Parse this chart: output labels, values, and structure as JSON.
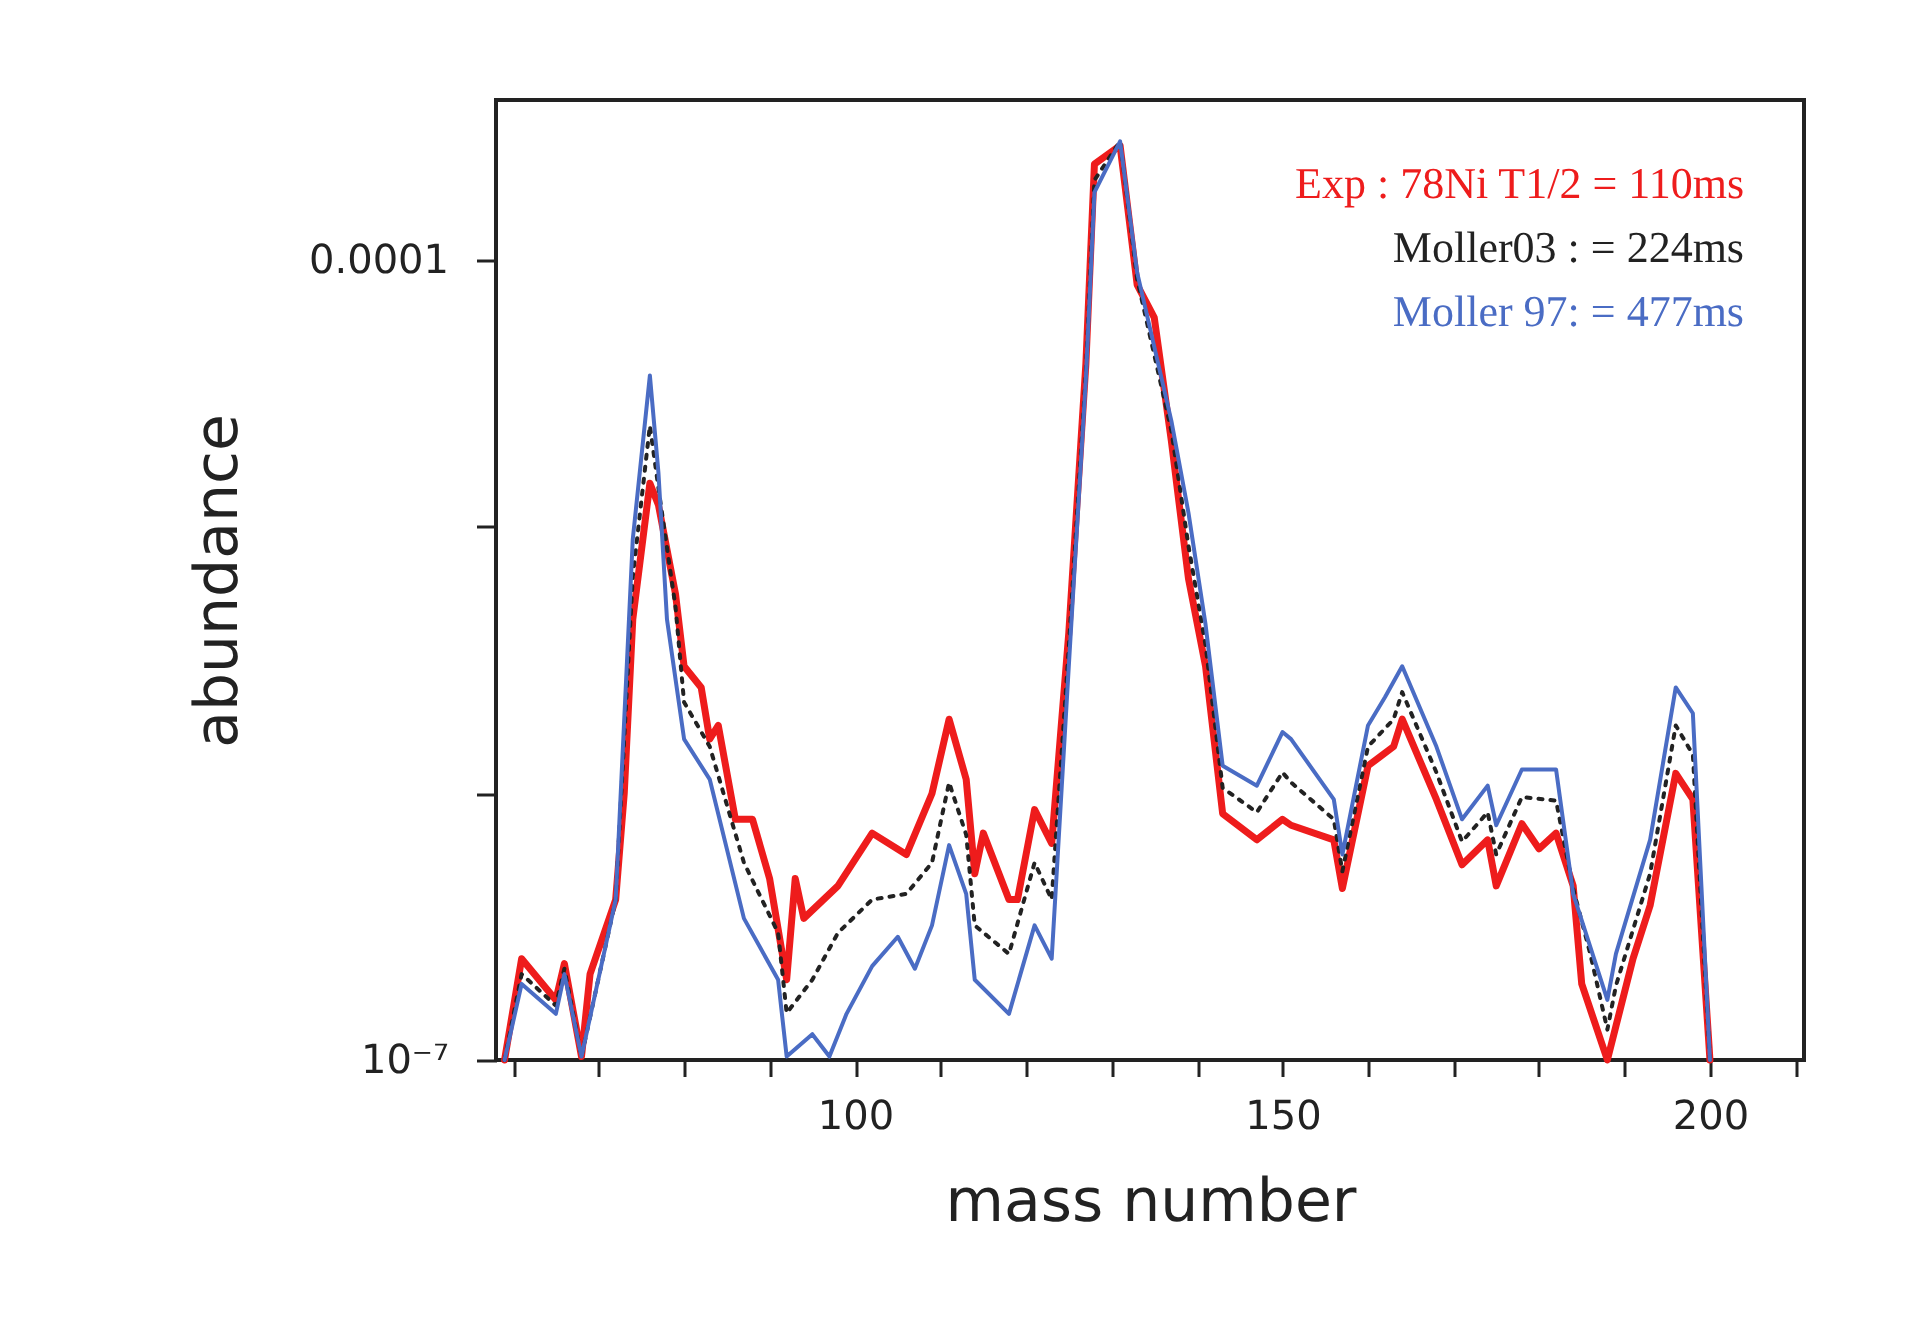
{
  "chart_data": {
    "type": "line",
    "xlabel": "mass number",
    "ylabel": "abundance",
    "log": "y",
    "grid": false,
    "legend": "top right",
    "xlim": [
      58,
      211
    ],
    "ylim": [
      1e-07,
      0.0004
    ],
    "xticks": [
      {
        "value": 60,
        "label": null
      },
      {
        "value": 70,
        "label": null
      },
      {
        "value": 80,
        "label": null
      },
      {
        "value": 90,
        "label": null
      },
      100,
      {
        "value": 110,
        "label": null
      },
      {
        "value": 120,
        "label": null
      },
      {
        "value": 130,
        "label": null
      },
      {
        "value": 140,
        "label": null
      },
      150,
      {
        "value": 160,
        "label": null
      },
      {
        "value": 170,
        "label": null
      },
      {
        "value": 180,
        "label": null
      },
      {
        "value": 190,
        "label": null
      },
      200,
      {
        "value": 210,
        "label": null
      }
    ],
    "yticks": [
      {
        "value": 1e-07,
        "label": "10⁻⁷"
      },
      {
        "value": 1e-06,
        "label": null
      },
      {
        "value": 1e-05,
        "label": null
      },
      {
        "value": 0.0001,
        "label": "0.0001"
      }
    ],
    "series": [
      {
        "name": "Exp : 78Ni T1/2 = 110ms",
        "color": "#ee1c1c",
        "line_style": "solid",
        "x": [
          59,
          61,
          65,
          66,
          68,
          69,
          72,
          73,
          74,
          76,
          77,
          79,
          80,
          82,
          83,
          84,
          86,
          88,
          90,
          92,
          93,
          94,
          98,
          102,
          106,
          109,
          111,
          113,
          114,
          115,
          118,
          119,
          121,
          123,
          125,
          127,
          128,
          131,
          133,
          135,
          137,
          139,
          141,
          143,
          147,
          150,
          151,
          156,
          157,
          160,
          163,
          164,
          168,
          171,
          174,
          175,
          178,
          180,
          182,
          184,
          185,
          188,
          189,
          191,
          193,
          196,
          198,
          200
        ],
        "values": [
          1e-07,
          2.4e-07,
          1.68e-07,
          2.3e-07,
          1.03e-07,
          2.1e-07,
          4e-07,
          1e-06,
          4.5e-06,
          1.46e-05,
          1.21e-05,
          5.6e-06,
          3e-06,
          2.5e-06,
          1.6e-06,
          1.8e-06,
          8e-07,
          8e-07,
          4.8e-07,
          2e-07,
          4.8e-07,
          3.4e-07,
          4.5e-07,
          7.1e-07,
          5.9e-07,
          1e-06,
          1.9e-06,
          1.13e-06,
          5e-07,
          7.1e-07,
          4e-07,
          4e-07,
          8.7e-07,
          6.5e-07,
          4e-06,
          4.1e-05,
          0.00023,
          0.00027,
          8.1e-05,
          6.1e-05,
          2.1e-05,
          6.4e-06,
          3e-06,
          8.4e-07,
          6.7e-07,
          8e-07,
          7.6e-07,
          6.7e-07,
          4.4e-07,
          1.27e-06,
          1.5e-06,
          1.9e-06,
          9.5e-07,
          5.4e-07,
          6.7e-07,
          4.5e-07,
          7.7e-07,
          6.2e-07,
          7.1e-07,
          4.5e-07,
          1.93e-07,
          1e-07,
          1.34e-07,
          2.4e-07,
          3.8e-07,
          1.19e-06,
          9.5e-07,
          1e-07
        ]
      },
      {
        "name": "Moller03 :          = 224ms",
        "color": "#222222",
        "line_style": "dotted",
        "x": [
          59,
          61,
          65,
          66,
          68,
          72,
          74,
          76,
          77,
          79,
          80,
          83,
          87,
          91,
          92,
          95,
          98,
          102,
          106,
          109,
          111,
          113,
          114,
          118,
          121,
          123,
          125,
          127,
          128,
          131,
          133,
          137,
          139,
          141,
          143,
          147,
          150,
          151,
          156,
          157,
          160,
          163,
          164,
          168,
          171,
          174,
          175,
          178,
          182,
          184,
          186,
          188,
          189,
          193,
          196,
          198,
          200
        ],
        "values": [
          1e-07,
          2.1e-07,
          1.6e-07,
          2.2e-07,
          1.03e-07,
          4e-07,
          6.5e-06,
          2.4e-05,
          1.4e-05,
          5e-06,
          2.2e-06,
          1.5e-06,
          5.5e-07,
          3e-07,
          1.5e-07,
          2e-07,
          3e-07,
          4e-07,
          4.2e-07,
          5.5e-07,
          1.1e-06,
          7e-07,
          3.2e-07,
          2.5e-07,
          5.5e-07,
          4e-07,
          3.5e-06,
          3.8e-05,
          0.0002,
          0.00028,
          8.5e-05,
          2.3e-05,
          8.5e-06,
          3.6e-06,
          1.05e-06,
          8.5e-07,
          1.2e-06,
          1.1e-06,
          8e-07,
          5.1e-07,
          1.5e-06,
          1.9e-06,
          2.4e-06,
          1.2e-06,
          6.6e-07,
          8.5e-07,
          5.9e-07,
          9.7e-07,
          9.4e-07,
          4.4e-07,
          2.5e-07,
          1.3e-07,
          1.9e-07,
          5e-07,
          1.8e-06,
          1.4e-06,
          1e-07
        ]
      },
      {
        "name": "Moller 97:          = 477ms",
        "color": "#4a6cc4",
        "line_style": "solid",
        "x": [
          59,
          61,
          65,
          66,
          68,
          72,
          74,
          76,
          77,
          78,
          80,
          83,
          87,
          91,
          92,
          95,
          97,
          99,
          102,
          105,
          107,
          109,
          111,
          113,
          114,
          118,
          121,
          123,
          125,
          127,
          128,
          131,
          133,
          137,
          139,
          141,
          143,
          147,
          150,
          151,
          156,
          157,
          160,
          162,
          164,
          168,
          171,
          174,
          175,
          178,
          182,
          184,
          188,
          189,
          193,
          196,
          198,
          200
        ],
        "values": [
          1e-07,
          1.93e-07,
          1.49e-07,
          2.1e-07,
          1.03e-07,
          4e-07,
          9e-06,
          3.7e-05,
          1.6e-05,
          4.5e-06,
          1.6e-06,
          1.13e-06,
          3.4e-07,
          2e-07,
          1.03e-07,
          1.25e-07,
          1.03e-07,
          1.49e-07,
          2.25e-07,
          2.9e-07,
          2.2e-07,
          3.2e-07,
          6.4e-07,
          4.2e-07,
          2e-07,
          1.49e-07,
          3.2e-07,
          2.4e-07,
          3e-06,
          3.6e-05,
          0.00018,
          0.00028,
          9e-05,
          2.5e-05,
          1.13e-05,
          4.3e-06,
          1.27e-06,
          1.07e-06,
          1.7e-06,
          1.6e-06,
          9.5e-07,
          5.9e-07,
          1.8e-06,
          2.3e-06,
          3e-06,
          1.5e-06,
          8e-07,
          1.07e-06,
          7.6e-07,
          1.23e-06,
          1.23e-06,
          4.2e-07,
          1.68e-07,
          2.5e-07,
          6.7e-07,
          2.5e-06,
          2e-06,
          1e-07
        ]
      }
    ]
  }
}
